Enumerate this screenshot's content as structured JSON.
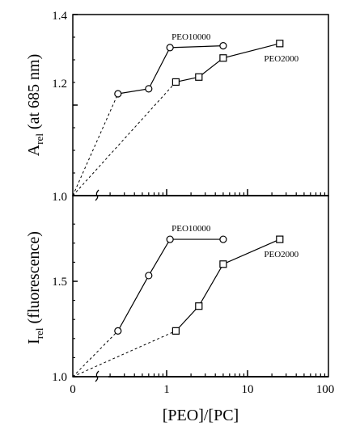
{
  "chart_data": [
    {
      "type": "line",
      "panel": "top",
      "ylabel": "A",
      "ylabel_sub": "rel",
      "ylabel_rest": " (at 685 nm)",
      "xlabel": "",
      "x_scale": "log",
      "xlim": [
        0.1,
        100
      ],
      "ylim": [
        1.0,
        1.4
      ],
      "yticks": [
        "1.0",
        "1.2",
        "1.4"
      ],
      "origin": {
        "x": 0,
        "y": 1.0
      },
      "series": [
        {
          "name": "PEO10000",
          "marker": "circle",
          "x": [
            0.25,
            0.6,
            1.1,
            5.0
          ],
          "y": [
            1.225,
            1.236,
            1.327,
            1.331
          ]
        },
        {
          "name": "PEO2000",
          "marker": "square",
          "x": [
            1.3,
            2.5,
            5.0,
            25.0
          ],
          "y": [
            1.251,
            1.262,
            1.304,
            1.336
          ]
        }
      ]
    },
    {
      "type": "line",
      "panel": "bottom",
      "ylabel": "I",
      "ylabel_sub": "rel",
      "ylabel_rest": " (fluorescence)",
      "xlabel_parts": [
        "[PEO]/[PC]"
      ],
      "x_scale": "log",
      "xlim": [
        0.1,
        100
      ],
      "ylim": [
        1.0,
        1.85
      ],
      "yticks": [
        "1.0",
        "1.5"
      ],
      "xticks": [
        "0",
        "1",
        "10",
        "100"
      ],
      "origin": {
        "x": 0,
        "y": 1.0
      },
      "series": [
        {
          "name": "PEO10000",
          "marker": "circle",
          "x": [
            0.25,
            0.6,
            1.1,
            5.0
          ],
          "y": [
            1.24,
            1.53,
            1.72,
            1.72
          ]
        },
        {
          "name": "PEO2000",
          "marker": "square",
          "x": [
            1.3,
            2.5,
            5.0,
            25.0
          ],
          "y": [
            1.24,
            1.37,
            1.59,
            1.72
          ]
        }
      ]
    }
  ]
}
